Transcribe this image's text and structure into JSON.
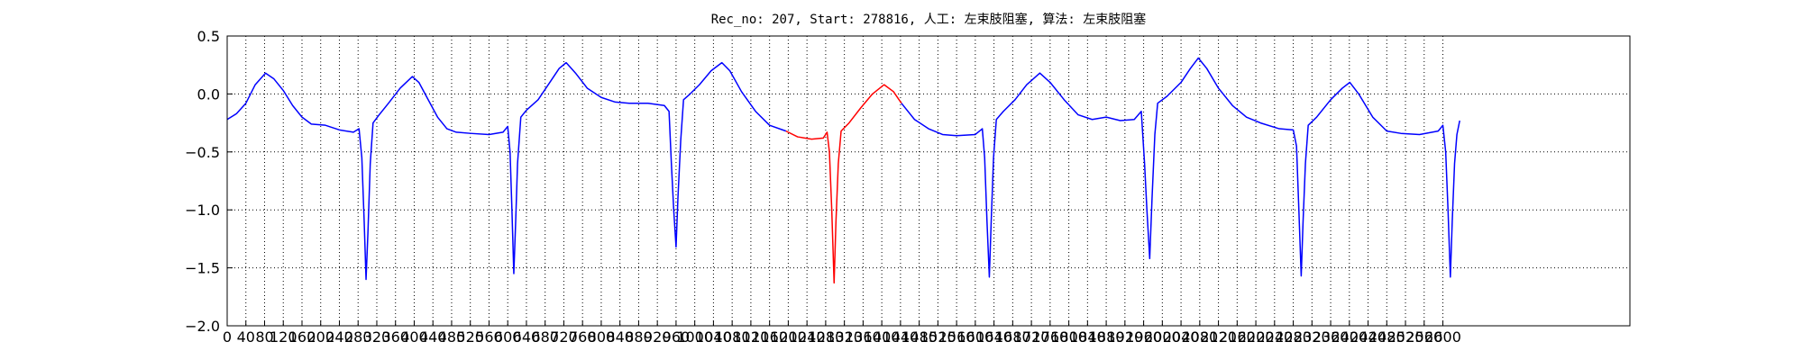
{
  "chart_data": {
    "type": "line",
    "title": "Rec_no: 207, Start: 278816, 人工: 左束肢阻塞, 算法: 左束肢阻塞",
    "x": [
      0,
      20,
      40,
      60,
      82,
      100,
      120,
      140,
      160,
      180,
      210,
      240,
      270,
      282,
      288,
      293,
      297,
      301,
      306,
      312,
      325,
      345,
      370,
      396,
      410,
      430,
      450,
      470,
      490,
      520,
      560,
      590,
      600,
      605,
      609,
      613,
      617,
      621,
      628,
      640,
      665,
      690,
      710,
      725,
      745,
      770,
      800,
      830,
      860,
      900,
      935,
      945,
      950,
      955,
      960,
      964,
      970,
      976,
      990,
      1010,
      1035,
      1058,
      1075,
      1100,
      1130,
      1160,
      1195,
      1220,
      1250,
      1275,
      1283,
      1288,
      1293,
      1298,
      1302,
      1307,
      1313,
      1330,
      1355,
      1380,
      1405,
      1425,
      1442,
      1470,
      1500,
      1530,
      1560,
      1600,
      1615,
      1620,
      1625,
      1630,
      1634,
      1639,
      1645,
      1660,
      1685,
      1710,
      1738,
      1760,
      1790,
      1820,
      1850,
      1880,
      1910,
      1940,
      1955,
      1962,
      1967,
      1973,
      1978,
      1984,
      1990,
      2010,
      2040,
      2060,
      2077,
      2095,
      2120,
      2150,
      2180,
      2210,
      2250,
      2280,
      2287,
      2292,
      2297,
      2301,
      2306,
      2312,
      2330,
      2360,
      2385,
      2401,
      2420,
      2450,
      2480,
      2510,
      2550,
      2590,
      2600,
      2606,
      2611,
      2616,
      2620,
      2625,
      2630,
      2636
    ],
    "series": [
      {
        "color": "#0000ff",
        "values": [
          -0.22,
          -0.17,
          -0.08,
          0.08,
          0.18,
          0.13,
          0.03,
          -0.1,
          -0.2,
          -0.26,
          -0.27,
          -0.31,
          -0.33,
          -0.3,
          -0.55,
          -1.1,
          -1.6,
          -1.2,
          -0.6,
          -0.25,
          -0.18,
          -0.08,
          0.05,
          0.15,
          0.1,
          -0.05,
          -0.2,
          -0.3,
          -0.33,
          -0.34,
          -0.35,
          -0.33,
          -0.28,
          -0.5,
          -1.0,
          -1.55,
          -1.1,
          -0.6,
          -0.2,
          -0.14,
          -0.05,
          0.1,
          0.22,
          0.27,
          0.18,
          0.05,
          -0.03,
          -0.07,
          -0.08,
          -0.08,
          -0.1,
          -0.15,
          -0.6,
          -1.0,
          -1.32,
          -0.9,
          -0.4,
          -0.05,
          0,
          0.08,
          0.2,
          0.27,
          0.2,
          0.02,
          -0.15,
          -0.27,
          -0.32,
          null,
          null,
          null,
          null,
          null,
          null,
          null,
          null,
          null,
          null,
          null,
          null,
          null,
          null,
          null,
          -0.08,
          -0.22,
          -0.3,
          -0.35,
          -0.36,
          -0.35,
          -0.3,
          -0.55,
          -1.1,
          -1.58,
          -1.1,
          -0.55,
          -0.22,
          -0.15,
          -0.05,
          0.08,
          0.18,
          0.1,
          -0.05,
          -0.18,
          -0.22,
          -0.2,
          -0.23,
          -0.22,
          -0.15,
          -0.6,
          -1.0,
          -1.42,
          -0.9,
          -0.35,
          -0.08,
          -0.02,
          0.1,
          0.22,
          0.31,
          0.22,
          0.05,
          -0.1,
          -0.2,
          -0.25,
          -0.3,
          -0.31,
          -0.45,
          -1.0,
          -1.57,
          -1.1,
          -0.6,
          -0.27,
          -0.2,
          -0.05,
          0.05,
          0.1,
          0,
          -0.2,
          -0.32,
          -0.34,
          -0.35,
          -0.32,
          -0.27,
          -0.5,
          -1.0,
          -1.58,
          -1.1,
          -0.6,
          -0.35,
          -0.23
        ]
      },
      {
        "color": "#ff0000",
        "values": [
          null,
          null,
          null,
          null,
          null,
          null,
          null,
          null,
          null,
          null,
          null,
          null,
          null,
          null,
          null,
          null,
          null,
          null,
          null,
          null,
          null,
          null,
          null,
          null,
          null,
          null,
          null,
          null,
          null,
          null,
          null,
          null,
          null,
          null,
          null,
          null,
          null,
          null,
          null,
          null,
          null,
          null,
          null,
          null,
          null,
          null,
          null,
          null,
          null,
          null,
          null,
          null,
          null,
          null,
          null,
          null,
          null,
          null,
          null,
          null,
          null,
          null,
          null,
          null,
          null,
          null,
          -0.32,
          -0.37,
          -0.39,
          -0.38,
          -0.33,
          -0.5,
          -1.0,
          -1.63,
          -1.1,
          -0.6,
          -0.32,
          -0.25,
          -0.12,
          0.0,
          0.08,
          0.02,
          -0.08,
          null,
          null,
          null,
          null,
          null,
          null,
          null,
          null,
          null,
          null,
          null,
          null,
          null,
          null,
          null,
          null,
          null,
          null,
          null,
          null,
          null,
          null,
          null,
          null,
          null,
          null,
          null,
          null,
          null,
          null,
          null,
          null,
          null,
          null,
          null,
          null,
          null,
          null,
          null,
          null,
          null,
          null,
          null,
          null,
          null,
          null,
          null,
          null,
          null,
          null,
          null,
          null,
          null,
          null,
          null,
          null,
          null,
          null,
          null,
          null,
          null,
          null,
          null,
          null,
          null
        ]
      }
    ],
    "xlim": [
      0,
      3000
    ],
    "xticks": [
      0,
      40,
      80,
      120,
      160,
      200,
      240,
      280,
      320,
      360,
      400,
      440,
      480,
      520,
      560,
      600,
      640,
      680,
      720,
      760,
      800,
      840,
      880,
      920,
      960,
      1000,
      1040,
      1080,
      1120,
      1160,
      1200,
      1240,
      1280,
      1320,
      1360,
      1400,
      1440,
      1480,
      1520,
      1560,
      1600,
      1640,
      1680,
      1720,
      1760,
      1800,
      1840,
      1880,
      1920,
      1960,
      2000,
      2040,
      2080,
      2120,
      2160,
      2200,
      2240,
      2280,
      2320,
      2360,
      2400,
      2440,
      2480,
      2520,
      2560,
      2600
    ],
    "ylim": [
      -2.0,
      0.5
    ],
    "yticks": [
      {
        "value": -2.0,
        "label": "−2.0"
      },
      {
        "value": -1.5,
        "label": "−1.5"
      },
      {
        "value": -1.0,
        "label": "−1.0"
      },
      {
        "value": -0.5,
        "label": "−0.5"
      },
      {
        "value": 0,
        "label": "0.0"
      },
      0.5
    ],
    "grid": true
  }
}
